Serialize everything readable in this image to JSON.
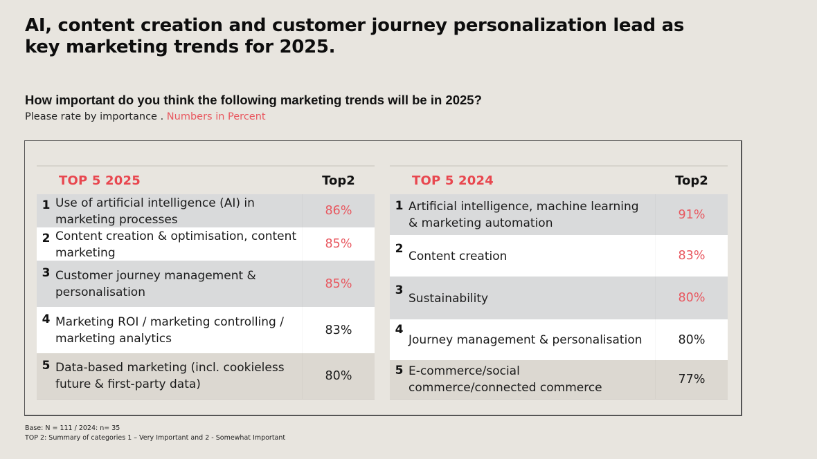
{
  "title": "AI, content creation and customer journey personalization lead as key marketing trends for 2025.",
  "question": "How important do you think the following marketing trends will be in 2025?",
  "subtitle": {
    "text": "Please rate by importance . ",
    "accent": "Numbers in Percent"
  },
  "colors": {
    "accent": "#e8474f",
    "highlight_value": "#e8565e",
    "background": "#e8e5df"
  },
  "tables": [
    {
      "title": "TOP 5 2025",
      "column_header": "Top2",
      "rows": [
        {
          "rank": "1",
          "label": "Use of artificial intelligence (AI) in marketing processes",
          "value": "86%",
          "highlight": true
        },
        {
          "rank": "2",
          "label": "Content creation & optimisation, content marketing",
          "value": "85%",
          "highlight": true
        },
        {
          "rank": "3",
          "label": "Customer journey management & personalisation",
          "value": "85%",
          "highlight": true
        },
        {
          "rank": "4",
          "label": "Marketing ROI / marketing controlling / marketing analytics",
          "value": "83%",
          "highlight": false
        },
        {
          "rank": "5",
          "label": "Data-based marketing (incl. cookieless future & first-party data)",
          "value": "80%",
          "highlight": false
        }
      ]
    },
    {
      "title": "TOP 5 2024",
      "column_header": "Top2",
      "rows": [
        {
          "rank": "1",
          "label": "Artificial intelligence, machine learning & marketing automation",
          "value": "91%",
          "highlight": true
        },
        {
          "rank": "2",
          "label": "Content creation",
          "value": "83%",
          "highlight": true
        },
        {
          "rank": "3",
          "label": "Sustainability",
          "value": "80%",
          "highlight": true
        },
        {
          "rank": "4",
          "label": "Journey management & personalisation",
          "value": "80%",
          "highlight": false
        },
        {
          "rank": "5",
          "label": "E-commerce/social commerce/connected commerce",
          "value": "77%",
          "highlight": false
        }
      ]
    }
  ],
  "footnotes": {
    "base": "Base: N = 111 / 2024: n= 35",
    "top2": "TOP 2: Summary of categories 1 – Very Important and 2 - Somewhat Important"
  }
}
